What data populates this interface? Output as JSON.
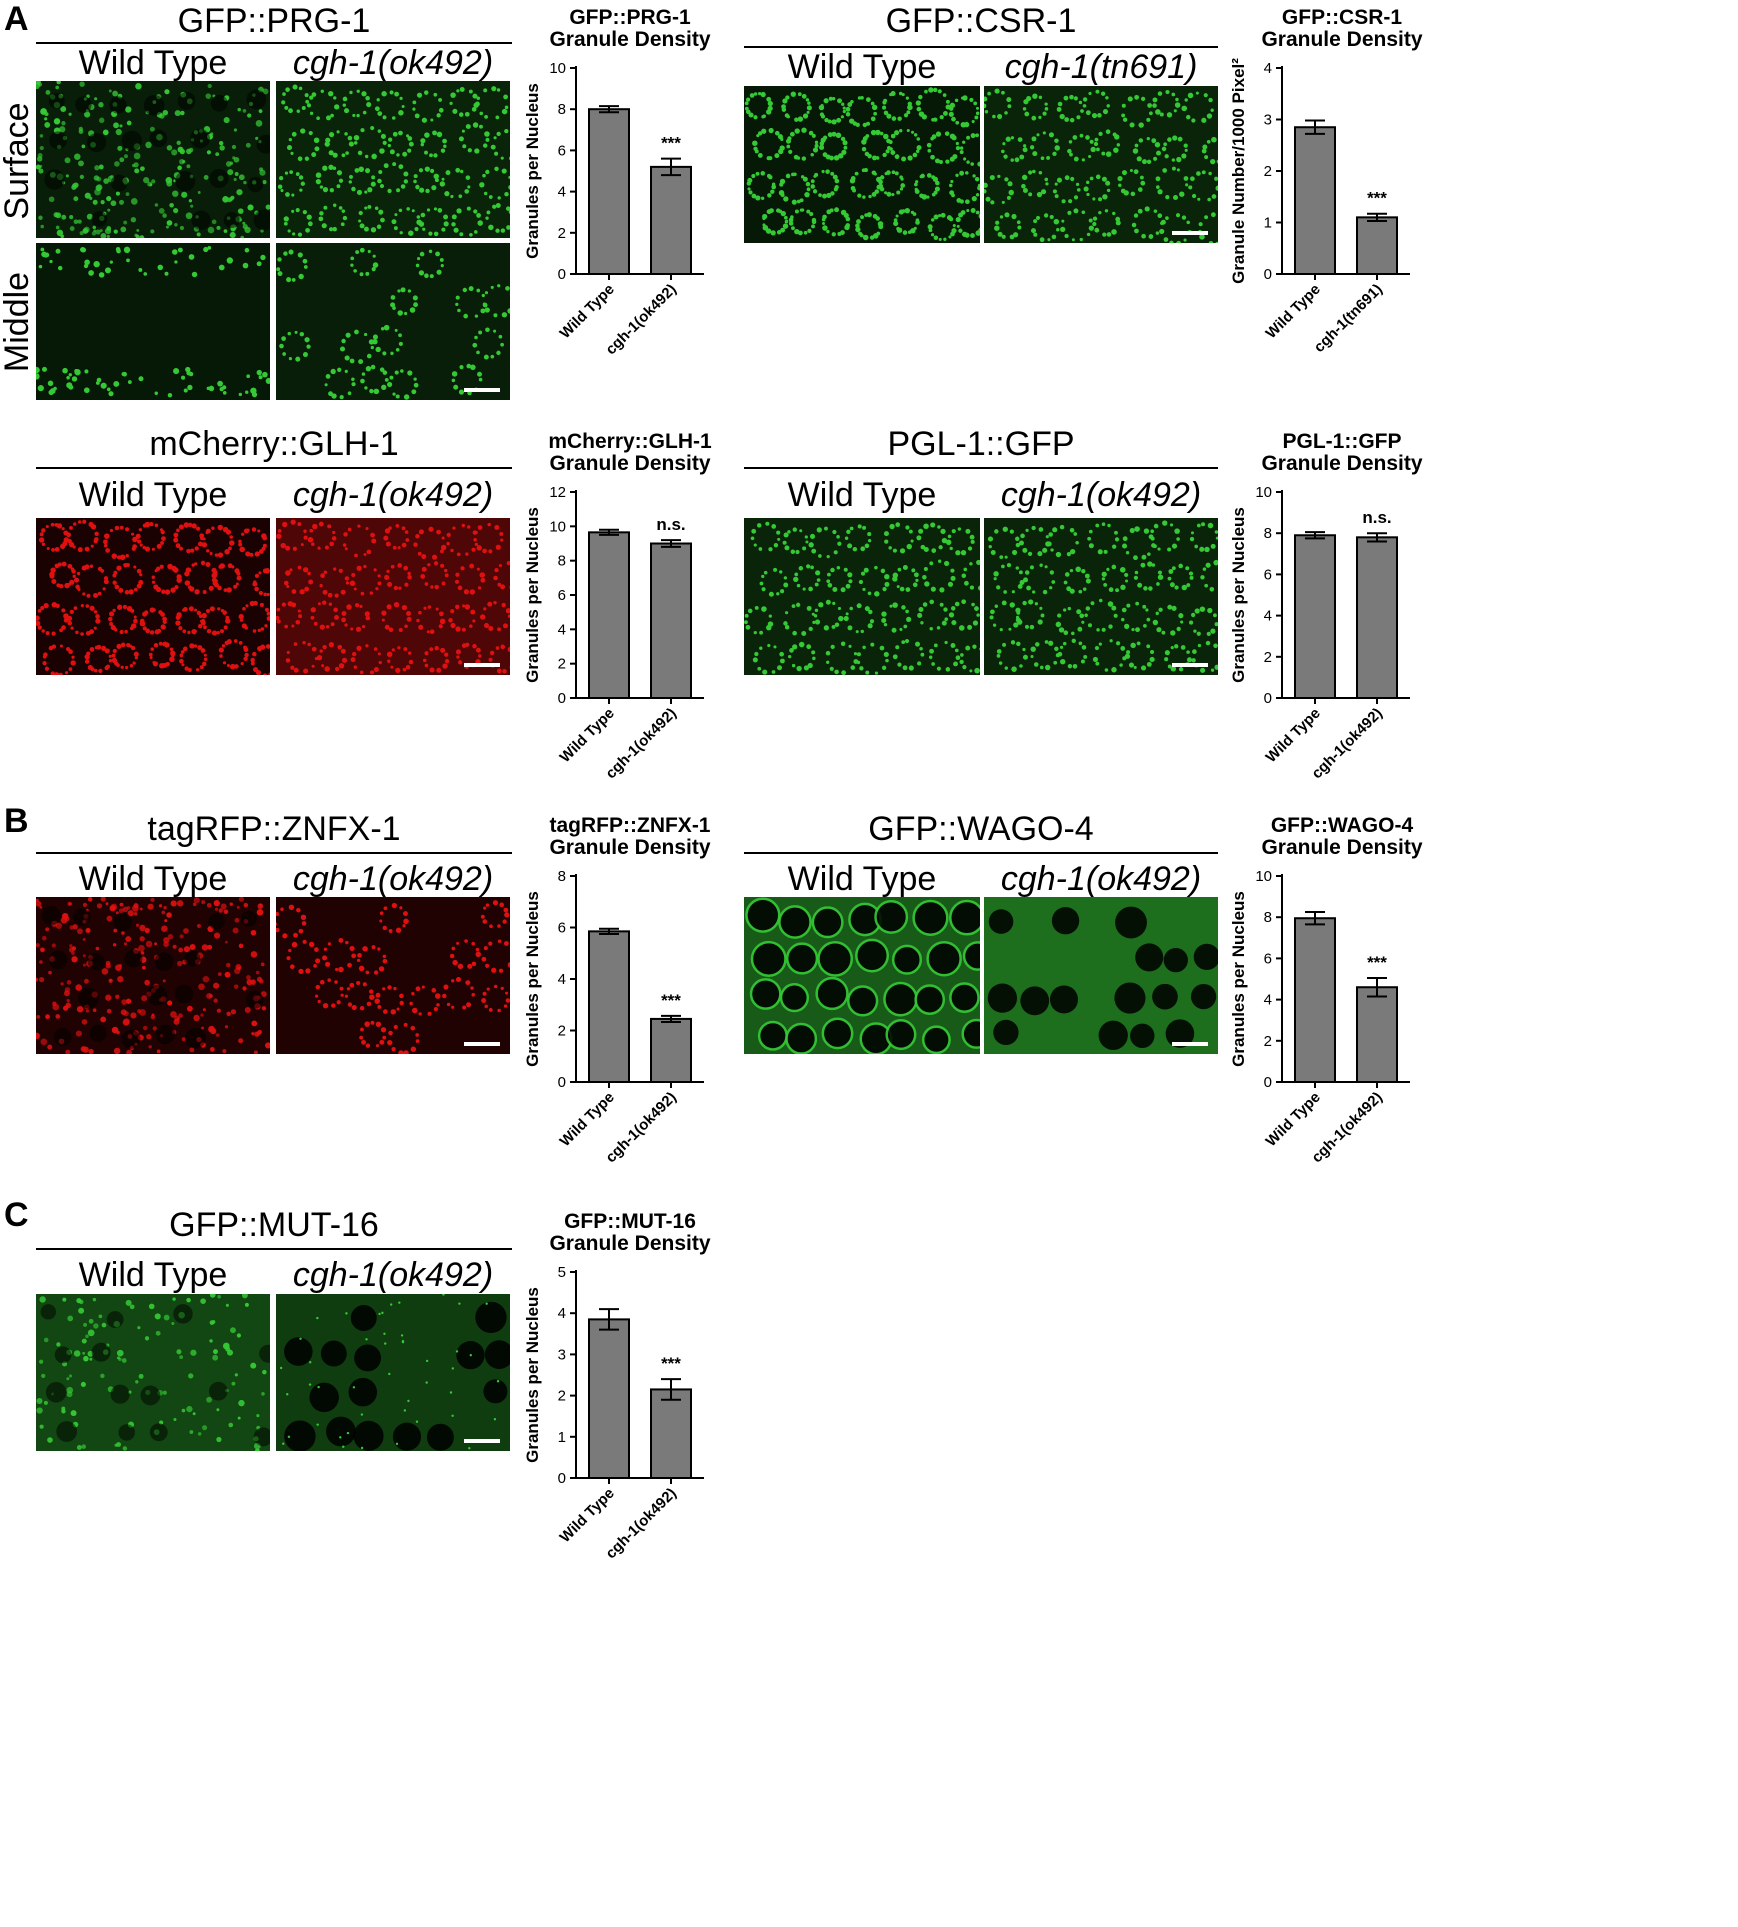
{
  "figure": {
    "panel_letters": {
      "A": "A",
      "B": "B",
      "C": "C"
    },
    "row_labels": {
      "surface": "Surface",
      "middle": "Middle"
    },
    "genotypes": {
      "wt": "Wild Type",
      "cgh_ok492": "cgh-1(ok492)",
      "cgh_tn691": "cgh-1(tn691)"
    },
    "micrographs": {
      "prg1": {
        "title": "GFP::PRG-1",
        "channel_color": "#35c935"
      },
      "csr1": {
        "title": "GFP::CSR-1",
        "channel_color": "#35c935"
      },
      "glh1": {
        "title": "mCherry::GLH-1",
        "channel_color": "#e01010"
      },
      "pgl1": {
        "title": "PGL-1::GFP",
        "channel_color": "#35c935"
      },
      "znfx1": {
        "title": "tagRFP::ZNFX-1",
        "channel_color": "#e01010"
      },
      "wago4": {
        "title": "GFP::WAGO-4",
        "channel_color": "#35c935"
      },
      "mut16": {
        "title": "GFP::MUT-16",
        "channel_color": "#35c935"
      }
    }
  },
  "chart_data": [
    {
      "id": "prg1",
      "type": "bar",
      "title": [
        "GFP::PRG-1",
        "Granule Density"
      ],
      "ylabel": "Granules per Nucleus",
      "categories": [
        "Wild Type",
        "cgh-1(ok492)"
      ],
      "values": [
        8.0,
        5.2
      ],
      "errors": [
        0.15,
        0.4
      ],
      "ylim": [
        0,
        10
      ],
      "yticks": [
        0,
        2,
        4,
        6,
        8,
        10
      ],
      "annotations": [
        "",
        "***"
      ],
      "bar_color": "#7a7a7a"
    },
    {
      "id": "csr1",
      "type": "bar",
      "title": [
        "GFP::CSR-1",
        "Granule Density"
      ],
      "ylabel": "Granule Number/1000 Pixel²",
      "categories": [
        "Wild Type",
        "cgh-1(tn691)"
      ],
      "values": [
        2.85,
        1.1
      ],
      "errors": [
        0.13,
        0.07
      ],
      "ylim": [
        0,
        4
      ],
      "yticks": [
        0,
        1,
        2,
        3,
        4
      ],
      "annotations": [
        "",
        "***"
      ],
      "bar_color": "#7a7a7a"
    },
    {
      "id": "glh1",
      "type": "bar",
      "title": [
        "mCherry::GLH-1",
        "Granule Density"
      ],
      "ylabel": "Granules per Nucleus",
      "categories": [
        "Wild Type",
        "cgh-1(ok492)"
      ],
      "values": [
        9.65,
        9.0
      ],
      "errors": [
        0.15,
        0.2
      ],
      "ylim": [
        0,
        12
      ],
      "yticks": [
        0,
        2,
        4,
        6,
        8,
        10,
        12
      ],
      "annotations": [
        "",
        "n.s."
      ],
      "bar_color": "#7a7a7a"
    },
    {
      "id": "pgl1",
      "type": "bar",
      "title": [
        "PGL-1::GFP",
        "Granule Density"
      ],
      "ylabel": "Granules per Nucleus",
      "categories": [
        "Wild Type",
        "cgh-1(ok492)"
      ],
      "values": [
        7.9,
        7.8
      ],
      "errors": [
        0.15,
        0.2
      ],
      "ylim": [
        0,
        10
      ],
      "yticks": [
        0,
        2,
        4,
        6,
        8,
        10
      ],
      "annotations": [
        "",
        "n.s."
      ],
      "bar_color": "#7a7a7a"
    },
    {
      "id": "znfx1",
      "type": "bar",
      "title": [
        "tagRFP::ZNFX-1",
        "Granule Density"
      ],
      "ylabel": "Granules per Nucleus",
      "categories": [
        "Wild Type",
        "cgh-1(ok492)"
      ],
      "values": [
        5.85,
        2.45
      ],
      "errors": [
        0.1,
        0.12
      ],
      "ylim": [
        0,
        8
      ],
      "yticks": [
        0,
        2,
        4,
        6,
        8
      ],
      "annotations": [
        "",
        "***"
      ],
      "bar_color": "#7a7a7a"
    },
    {
      "id": "wago4",
      "type": "bar",
      "title": [
        "GFP::WAGO-4",
        "Granule Density"
      ],
      "ylabel": "Granules per Nucleus",
      "categories": [
        "Wild Type",
        "cgh-1(ok492)"
      ],
      "values": [
        7.95,
        4.6
      ],
      "errors": [
        0.3,
        0.45
      ],
      "ylim": [
        0,
        10
      ],
      "yticks": [
        0,
        2,
        4,
        6,
        8,
        10
      ],
      "annotations": [
        "",
        "***"
      ],
      "bar_color": "#7a7a7a"
    },
    {
      "id": "mut16",
      "type": "bar",
      "title": [
        "GFP::MUT-16",
        "Granule Density"
      ],
      "ylabel": "Granules per Nucleus",
      "categories": [
        "Wild Type",
        "cgh-1(ok492)"
      ],
      "values": [
        3.85,
        2.15
      ],
      "errors": [
        0.25,
        0.25
      ],
      "ylim": [
        0,
        5
      ],
      "yticks": [
        0,
        1,
        2,
        3,
        4,
        5
      ],
      "annotations": [
        "",
        "***"
      ],
      "bar_color": "#7a7a7a"
    }
  ]
}
